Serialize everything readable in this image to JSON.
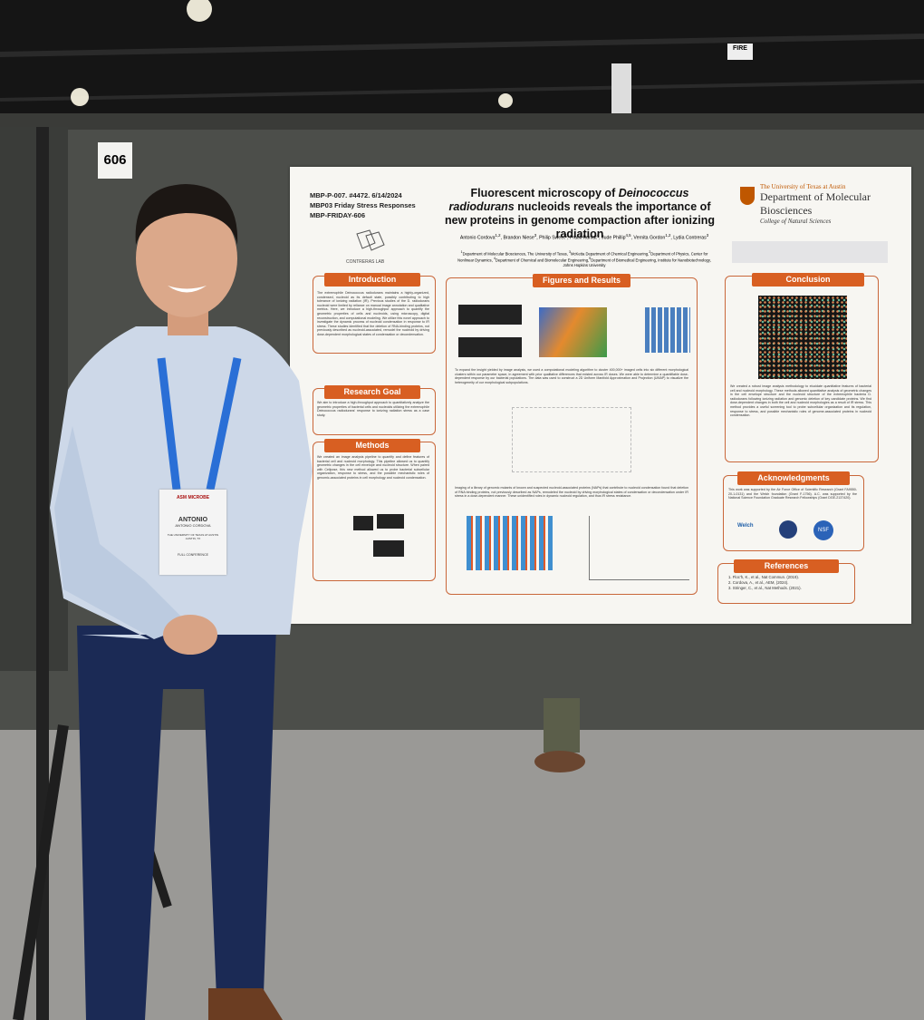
{
  "board_number": "606",
  "sign": "FIRE",
  "poster": {
    "session": [
      "MBP-P-007. #4472. 6/14/2024",
      "MBP03 Friday Stress Responses",
      "MBP-FRIDAY-606"
    ],
    "lab": "CONTRERAS LAB",
    "title_parts": [
      "Fluorescent microscopy of ",
      "Deinococcus radiodurans",
      " nucleoids reveals the importance of new proteins in genome compaction after ionizing radiation"
    ],
    "authors": [
      {
        "name": "Antonio Cordova",
        "sup": "1,2"
      },
      {
        "name": "Brandon Niese",
        "sup": "3"
      },
      {
        "name": "Philip Sweet",
        "sup": "1"
      },
      {
        "name": "Pratik Kamat",
        "sup": "4"
      },
      {
        "name": "Jude Phillip",
        "sup": "4,5"
      },
      {
        "name": "Vernita Gordon",
        "sup": "1,2"
      },
      {
        "name": "Lydia Contreras",
        "sup": "3"
      }
    ],
    "affiliations": [
      {
        "sup": "1",
        "text": "Department of Molecular Biosciences, The University of Texas, "
      },
      {
        "sup": "3",
        "text": "McKetta Department of Chemical Engineering,"
      },
      {
        "sup": "2",
        "text": "Department of Physics, Center for Nonlinear Dynamics, "
      },
      {
        "sup": "4",
        "text": "Department of Chemical and Biomolecular Engineering,"
      },
      {
        "sup": "5",
        "text": "Department of Biomedical Engineering, Institute for Nanobiotechnology, Johns Hopkins University"
      }
    ],
    "institution": {
      "university": "The University of Texas at Austin",
      "department": "Department of Molecular Biosciences",
      "college": "College of Natural Sciences"
    },
    "introduction": {
      "heading": "Introduction",
      "text": "The extremophile Deinococcus radiodurans maintains a highly-organized, condensed, nucleoid as its default state, possibly contributing to high tolerance of ionizing radiation (IR). Previous studies of the D. radiodurans nucleoid were limited by reliance on manual image annotation and qualitative metrics. Here, we introduce a high-throughput approach to quantify the geometric properties of cells and nucleoids, using microscopy, digital reconstruction, and computational modeling. We utilize this novel approach to investigate the dynamic process of nucleoid condensation in response to IR stress. These studies identified that the deletion of RNA-binding proteins, not previously described as nucleoid-associated, remodel the nucleoid by driving dose-dependent morphological states of condensation or decondensation."
    },
    "research_goal": {
      "heading": "Research Goal",
      "text": "We aim to introduce a high-throughput approach to quantitatively analyze the geometric properties of bacterial cells and nucleoids utilizing the extremophile Deinococcus radiodurans' response to ionizing radiation stress as a case study."
    },
    "methods": {
      "heading": "Methods",
      "text": "We created an image analysis pipeline to quantify and define features of bacterial cell and nucleoid morphology. This pipeline allowed us to quantify geometric changes in the cell envelope and nucleoid structure. When paired with Cellpose, this new method allowed us to probe bacterial subcellular organization, response to stress, and the possible mechanistic roles of genomic-associated proteins in cell morphology and nucleoid condensation."
    },
    "figures": {
      "heading": "Figures and Results",
      "text": [
        "To expand the insight yielded by image analysis, we used a computational modeling algorithm to cluster 400,000+ imaged cells into six different morphological clusters within our parameter space, in agreement with prior qualitative differences that existed across IR doses. We were able to determine a quantifiable dose-dependent response by our bacterial populations. The data was used to construct a 2D Uniform Manifold Approximation and Projection (UMAP) to visualize the heterogeneity of our morphological subpopulations.",
        "Imaging of a library of genomic mutants of known and suspected nucleoid-associated proteins (NAPs) that contribute to nucleoid condensation found that deletion of RNA binding proteins, not previously described as NAPs, remodeled the nucleoid by driving morphological states of condensation or decondensation under IR stress in a dose-dependent manner. These unidentified roles in dynamic nucleoid regulation, and thus IR stress resistance."
      ]
    },
    "conclusion": {
      "heading": "Conclusion",
      "text": "We created a robust image analysis methodology to elucidate quantitative features of bacterial cell and nucleoid morphology. These methods allowed quantitative analysis of geometric changes in the cell envelope structure and the nucleoid structure of the extremophile bacteria D. radiodurans following ionizing radiation and genomic deletion of key candidate proteins. We find dose-dependent changes in both the cell and nucleoid morphologies as a result of IR stress. This method provides a useful screening tool to probe subcellular organization and its regulation, response to stress, and possible mechanistic roles of genome-associated proteins in nucleoid condensation."
    },
    "acknowledgments": {
      "heading": "Acknowledgments",
      "text": "This work was supported by the Air Force Office of Scientific Research (Grant FA9550-20-1-0131) and the Welch foundation (Grant F-1756). A.C. was supported by the National Science Foundation Graduate Research Fellowships (Grant DGE-2137420).",
      "logos": [
        "Welch",
        "NSF"
      ]
    },
    "references": {
      "heading": "References",
      "items": [
        "1. Floc'h, K., et al., Nat Commun. (2019).",
        "2. Cordova, A., et al., AEM, (2024).",
        "3. Stringer, C., et al., Nat Methods. (2021)."
      ]
    }
  },
  "badge": {
    "event": "ASM MICROBE",
    "name": "ANTONIO",
    "full_name": "ANTONIO CORDOVA",
    "affiliation": "THE UNIVERSITY OF TEXAS AT AUSTIN",
    "location": "AUSTIN, TX",
    "type": "FULL CONFERENCE"
  }
}
